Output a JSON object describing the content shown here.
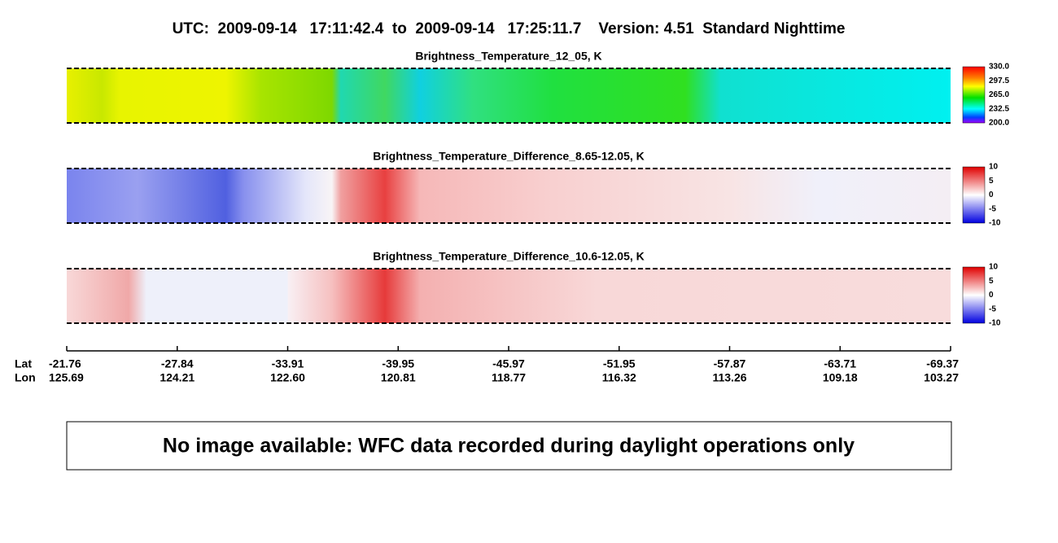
{
  "header": {
    "title": "UTC:  2009-09-14   17:11:42.4  to  2009-09-14   17:25:11.7    Version: 4.51  Standard Nighttime"
  },
  "panels": [
    {
      "title": "Brightness_Temperature_12_05, K",
      "colorbar_labels": [
        "330.0",
        "297.5",
        "265.0",
        "232.5",
        "200.0"
      ]
    },
    {
      "title": "Brightness_Temperature_Difference_8.65-12.05, K",
      "colorbar_labels": [
        "10",
        "5",
        "0",
        "-5",
        "-10"
      ]
    },
    {
      "title": "Brightness_Temperature_Difference_10.6-12.05, K",
      "colorbar_labels": [
        "10",
        "5",
        "0",
        "-5",
        "-10"
      ]
    }
  ],
  "axis": {
    "lat_label": "Lat",
    "lon_label": "Lon",
    "lat": [
      "-21.76",
      "-27.84",
      "-33.91",
      "-39.95",
      "-45.97",
      "-51.95",
      "-57.87",
      "-63.71",
      "-69.37"
    ],
    "lon": [
      "125.69",
      "124.21",
      "122.60",
      "120.81",
      "118.77",
      "116.32",
      "113.26",
      "109.18",
      "103.27"
    ]
  },
  "message": "No image available: WFC data recorded during daylight operations only"
}
